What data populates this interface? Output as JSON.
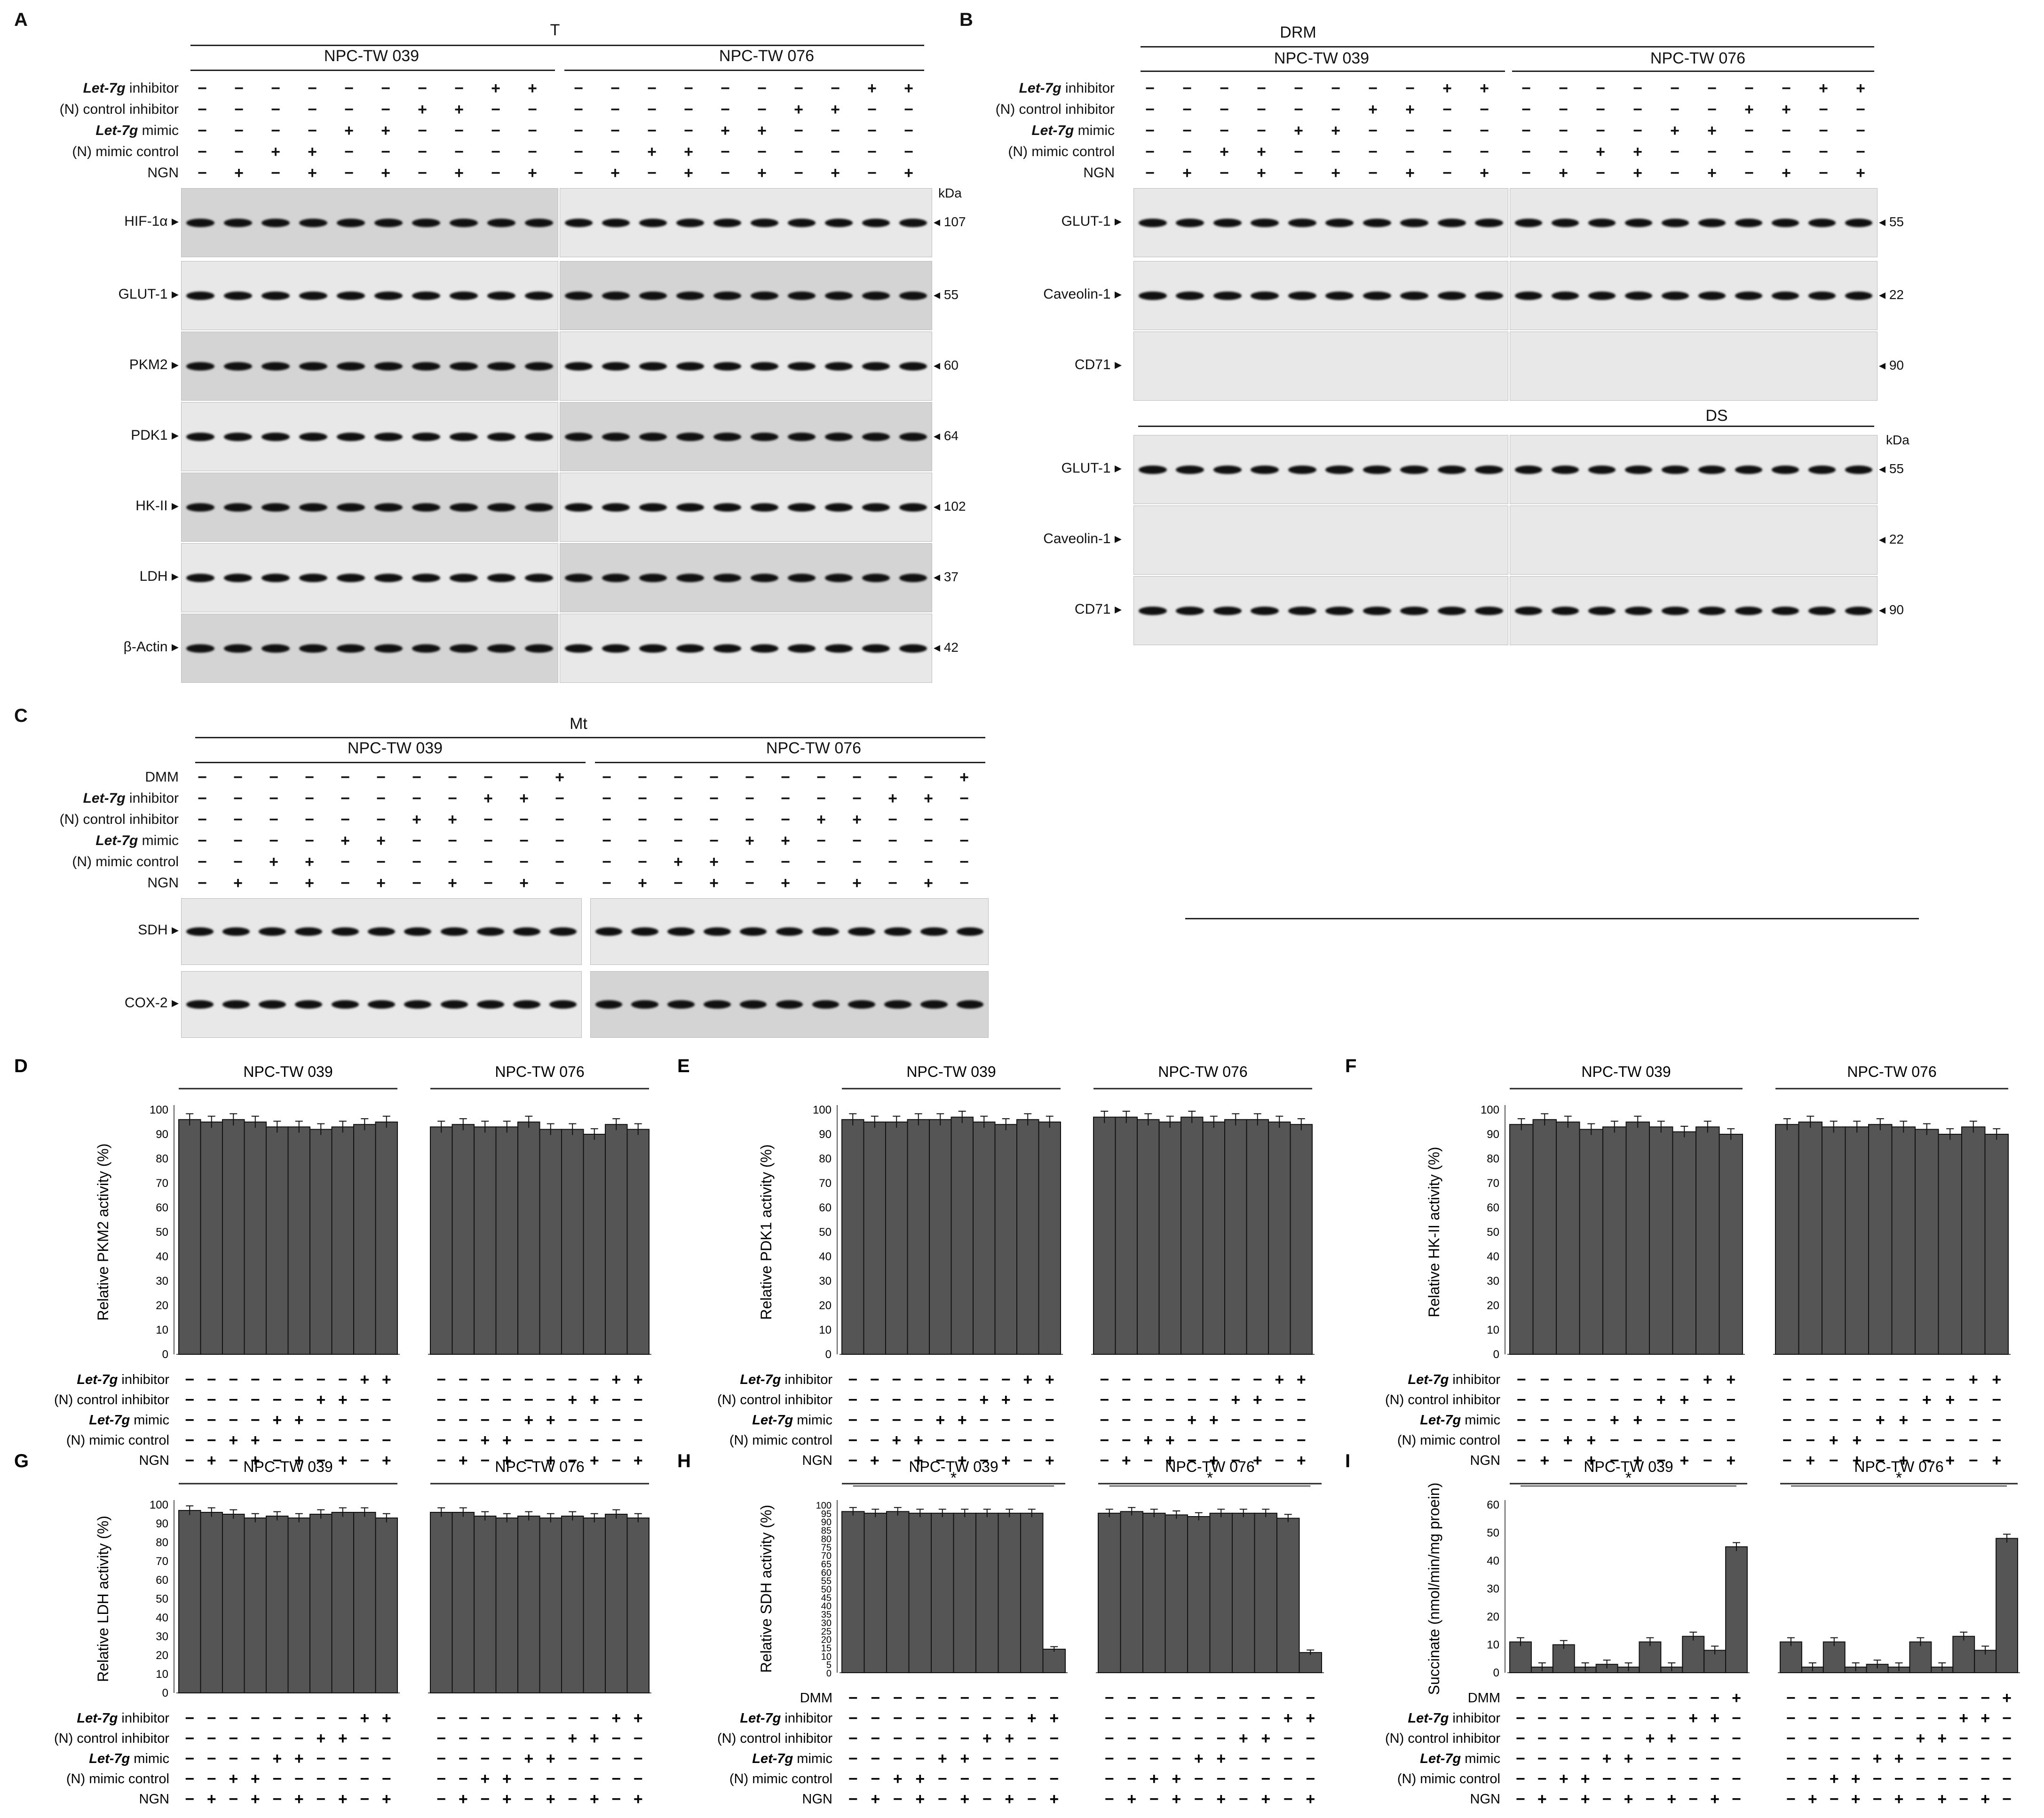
{
  "panels": {
    "A": {
      "label": "A",
      "title": "T",
      "cells": [
        "NPC-TW 039",
        "NPC-TW 076"
      ],
      "conditions": [
        "Let-7g inhibitor",
        "(N) control inhibitor",
        "Let-7g mimic",
        "(N) mimic control",
        "NGN"
      ],
      "rows": [
        [
          "HIF-1α",
          "107"
        ],
        [
          "GLUT-1",
          "55"
        ],
        [
          "PKM2",
          "60"
        ],
        [
          "PDK1",
          "64"
        ],
        [
          "HK-II",
          "102"
        ],
        [
          "LDH",
          "37"
        ],
        [
          "β-Actin",
          "42"
        ]
      ],
      "kda": "kDa"
    },
    "B": {
      "label": "B",
      "title_top": "DRM",
      "title_bottom": "DS",
      "cells": [
        "NPC-TW 039",
        "NPC-TW 076"
      ],
      "conditions": [
        "Let-7g inhibitor",
        "(N) control inhibitor",
        "Let-7g mimic",
        "(N) mimic control",
        "NGN"
      ],
      "rows_top": [
        [
          "GLUT-1",
          "55"
        ],
        [
          "Caveolin-1",
          "22"
        ],
        [
          "CD71",
          "90"
        ]
      ],
      "rows_bottom": [
        [
          "GLUT-1",
          "55"
        ],
        [
          "Caveolin-1",
          "22"
        ],
        [
          "CD71",
          "90"
        ]
      ],
      "kda": "kDa"
    },
    "C": {
      "label": "C",
      "title": "Mt",
      "cells": [
        "NPC-TW 039",
        "NPC-TW 076"
      ],
      "conditions": [
        "DMM",
        "Let-7g inhibitor",
        "(N) control inhibitor",
        "Let-7g mimic",
        "(N) mimic control",
        "NGN"
      ],
      "rows": [
        "SDH",
        "COX-2"
      ]
    }
  },
  "patterns": {
    "five": [
      [
        "−",
        "−",
        "−",
        "−",
        "−",
        "−",
        "−",
        "−",
        "+",
        "+"
      ],
      [
        "−",
        "−",
        "−",
        "−",
        "−",
        "−",
        "+",
        "+",
        "−",
        "−"
      ],
      [
        "−",
        "−",
        "−",
        "−",
        "+",
        "+",
        "−",
        "−",
        "−",
        "−"
      ],
      [
        "−",
        "−",
        "+",
        "+",
        "−",
        "−",
        "−",
        "−",
        "−",
        "−"
      ],
      [
        "−",
        "+",
        "−",
        "+",
        "−",
        "+",
        "−",
        "+",
        "−",
        "+"
      ]
    ],
    "six": [
      [
        "−",
        "−",
        "−",
        "−",
        "−",
        "−",
        "−",
        "−",
        "−",
        "−",
        "+"
      ],
      [
        "−",
        "−",
        "−",
        "−",
        "−",
        "−",
        "−",
        "−",
        "+",
        "+",
        "−"
      ],
      [
        "−",
        "−",
        "−",
        "−",
        "−",
        "−",
        "+",
        "+",
        "−",
        "−",
        "−"
      ],
      [
        "−",
        "−",
        "−",
        "−",
        "+",
        "+",
        "−",
        "−",
        "−",
        "−",
        "−"
      ],
      [
        "−",
        "−",
        "+",
        "+",
        "−",
        "−",
        "−",
        "−",
        "−",
        "−",
        "−"
      ],
      [
        "−",
        "+",
        "−",
        "+",
        "−",
        "+",
        "−",
        "+",
        "−",
        "+",
        "−"
      ]
    ]
  },
  "chart_data": [
    {
      "id": "D",
      "type": "bar",
      "ylabel": "Relative PKM2 activity (%)",
      "ylim": [
        0,
        100
      ],
      "yticks": [
        0,
        10,
        20,
        30,
        40,
        50,
        60,
        70,
        80,
        90,
        100
      ],
      "groups": [
        "NPC-TW 039",
        "NPC-TW 076"
      ],
      "series": [
        {
          "values": [
            96,
            95,
            96,
            95,
            93,
            93,
            92,
            93,
            94,
            95
          ]
        },
        {
          "values": [
            93,
            94,
            93,
            93,
            95,
            92,
            92,
            90,
            94,
            92
          ]
        }
      ],
      "conditions": [
        "Let-7g inhibitor",
        "(N) control inhibitor",
        "Let-7g mimic",
        "(N) mimic control",
        "NGN"
      ]
    },
    {
      "id": "E",
      "type": "bar",
      "ylabel": "Relative PDK1 activity (%)",
      "ylim": [
        0,
        100
      ],
      "yticks": [
        0,
        10,
        20,
        30,
        40,
        50,
        60,
        70,
        80,
        90,
        100
      ],
      "groups": [
        "NPC-TW 039",
        "NPC-TW 076"
      ],
      "series": [
        {
          "values": [
            96,
            95,
            95,
            96,
            96,
            97,
            95,
            94,
            96,
            95
          ]
        },
        {
          "values": [
            97,
            97,
            96,
            95,
            97,
            95,
            96,
            96,
            95,
            94
          ]
        }
      ],
      "conditions": [
        "Let-7g inhibitor",
        "(N) control inhibitor",
        "Let-7g mimic",
        "(N) mimic control",
        "NGN"
      ]
    },
    {
      "id": "F",
      "type": "bar",
      "ylabel": "Relative HK-II activity (%)",
      "ylim": [
        0,
        100
      ],
      "yticks": [
        0,
        10,
        20,
        30,
        40,
        50,
        60,
        70,
        80,
        90,
        100
      ],
      "groups": [
        "NPC-TW 039",
        "NPC-TW 076"
      ],
      "series": [
        {
          "values": [
            94,
            96,
            95,
            92,
            93,
            95,
            93,
            91,
            93,
            90
          ]
        },
        {
          "values": [
            94,
            95,
            93,
            93,
            94,
            93,
            92,
            90,
            93,
            90
          ]
        }
      ],
      "conditions": [
        "Let-7g inhibitor",
        "(N) control inhibitor",
        "Let-7g mimic",
        "(N) mimic control",
        "NGN"
      ]
    },
    {
      "id": "G",
      "type": "bar",
      "ylabel": "Relative LDH activity (%)",
      "ylim": [
        0,
        100
      ],
      "yticks": [
        0,
        10,
        20,
        30,
        40,
        50,
        60,
        70,
        80,
        90,
        100
      ],
      "groups": [
        "NPC-TW 039",
        "NPC-TW 076"
      ],
      "series": [
        {
          "values": [
            97,
            96,
            95,
            93,
            94,
            93,
            95,
            96,
            96,
            93
          ]
        },
        {
          "values": [
            96,
            96,
            94,
            93,
            94,
            93,
            94,
            93,
            95,
            93
          ]
        }
      ],
      "conditions": [
        "Let-7g inhibitor",
        "(N) control inhibitor",
        "Let-7g mimic",
        "(N) mimic control",
        "NGN"
      ]
    },
    {
      "id": "H",
      "type": "bar",
      "ylabel": "Relative SDH activity (%)",
      "ylim": [
        0,
        100
      ],
      "yticks": [
        0,
        5,
        10,
        15,
        20,
        25,
        30,
        35,
        40,
        45,
        50,
        55,
        60,
        65,
        70,
        75,
        80,
        85,
        90,
        95,
        100
      ],
      "groups": [
        "NPC-TW 039",
        "NPC-TW 076"
      ],
      "series": [
        {
          "values": [
            96,
            95,
            96,
            95,
            95,
            95,
            95,
            95,
            95,
            14
          ]
        },
        {
          "values": [
            95,
            96,
            95,
            94,
            93,
            95,
            95,
            95,
            92,
            12
          ]
        }
      ],
      "annotation": "*",
      "conditions": [
        "DMM",
        "Let-7g inhibitor",
        "(N) control inhibitor",
        "Let-7g mimic",
        "(N) mimic control",
        "NGN"
      ]
    },
    {
      "id": "I",
      "type": "bar",
      "ylabel": "Succinate (nmol/min/mg proein)",
      "ylim": [
        0,
        60
      ],
      "yticks": [
        0,
        10,
        20,
        30,
        40,
        50,
        60
      ],
      "groups": [
        "NPC-TW 039",
        "NPC-TW 076"
      ],
      "series": [
        {
          "values": [
            11,
            2,
            10,
            2,
            3,
            2,
            11,
            2,
            13,
            8,
            45
          ]
        },
        {
          "values": [
            11,
            2,
            11,
            2,
            3,
            2,
            11,
            2,
            13,
            8,
            48
          ]
        }
      ],
      "annotation": "*",
      "conditions": [
        "DMM",
        "Let-7g inhibitor",
        "(N) control inhibitor",
        "Let-7g mimic",
        "(N) mimic control",
        "NGN"
      ]
    }
  ],
  "chart_labels": {
    "D": "D",
    "E": "E",
    "F": "F",
    "G": "G",
    "H": "H",
    "I": "I"
  }
}
